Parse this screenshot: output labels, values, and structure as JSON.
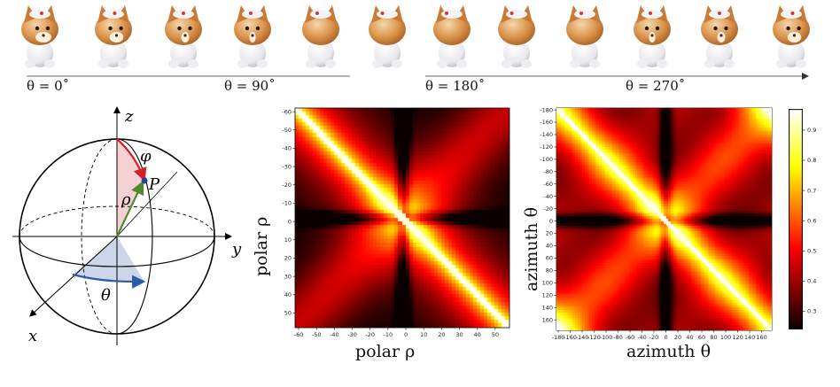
{
  "figure": {
    "timeline_labels": [
      "θ = 0˚",
      "θ = 90˚",
      "θ = 180˚",
      "θ = 270˚"
    ],
    "sphere_labels": {
      "z": "z",
      "y": "y",
      "x": "x",
      "P": "P",
      "phi": "φ",
      "rho": "ρ",
      "theta": "θ"
    },
    "colors": {
      "phi_arrow": "#d3202a",
      "rho_arrow": "#4f8a2a",
      "theta_arrow": "#2a5aa8",
      "phi_sector": "#f3c6c9",
      "theta_sector": "#c6d2e6",
      "point": "#2a3f8f"
    },
    "views_count": 12
  },
  "chart_data": [
    {
      "type": "heatmap",
      "xlabel": "polar ρ",
      "ylabel": "polar ρ",
      "x_ticks": [
        "-60",
        "-50",
        "-40",
        "-30",
        "-20",
        "-10",
        "0",
        "10",
        "20",
        "30",
        "40",
        "50"
      ],
      "y_ticks": [
        "-60",
        "-50",
        "-40",
        "-30",
        "-20",
        "-10",
        "0",
        "10",
        "20",
        "30",
        "40",
        "50"
      ],
      "xlim": [
        -62,
        58
      ],
      "ylim": [
        -62,
        58
      ],
      "colormap": "hot"
    },
    {
      "type": "heatmap",
      "xlabel": "azimuth θ",
      "ylabel": "azimuth θ",
      "x_ticks": [
        "-180",
        "-160",
        "-140",
        "-120",
        "-100",
        "-80",
        "-60",
        "-40",
        "-20",
        "0",
        "20",
        "40",
        "60",
        "80",
        "100",
        "120",
        "140",
        "160"
      ],
      "y_ticks": [
        "-180",
        "-160",
        "-140",
        "-120",
        "-100",
        "-80",
        "-60",
        "-40",
        "-20",
        "0",
        "20",
        "40",
        "60",
        "80",
        "100",
        "120",
        "140",
        "160"
      ],
      "xlim": [
        -183,
        177
      ],
      "ylim": [
        -183,
        177
      ],
      "colormap": "hot",
      "colorbar_ticks": [
        "0.9",
        "0.8",
        "0.7",
        "0.6",
        "0.5",
        "0.4",
        "0.3"
      ],
      "colorbar_range": [
        0.24,
        0.97
      ]
    }
  ]
}
